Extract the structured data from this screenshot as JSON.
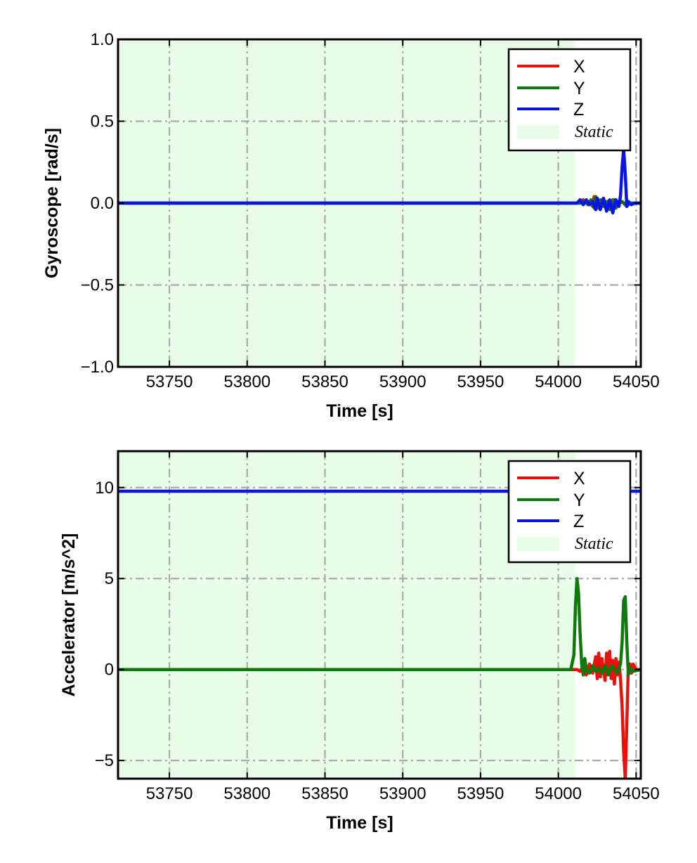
{
  "colors": {
    "x": "#e8120c",
    "y": "#0e7a0e",
    "z": "#0a14e6",
    "static_fill": "#e8fce8",
    "grid": "#aaaaaa"
  },
  "chart_data": [
    {
      "type": "line",
      "xlabel": "Time [s]",
      "ylabel": "Gyroscope [rad/s]",
      "xlim": [
        53717,
        54053
      ],
      "ylim": [
        -1.0,
        1.0
      ],
      "xticks": [
        53750,
        53800,
        53850,
        53900,
        53950,
        54000,
        54050
      ],
      "yticks": [
        -1.0,
        -0.5,
        0.0,
        0.5,
        1.0
      ],
      "ytick_labels": [
        "−1.0",
        "−0.5",
        "0.0",
        "0.5",
        "1.0"
      ],
      "grid": true,
      "static_region": [
        53717,
        54011
      ],
      "legend": {
        "position": "top-right",
        "entries": [
          "X",
          "Y",
          "Z",
          "Static"
        ]
      },
      "series": [
        {
          "name": "X",
          "color": "#e8120c",
          "points": [
            [
              53717,
              0
            ],
            [
              54014,
              0
            ],
            [
              54016,
              0.02
            ],
            [
              54018,
              0
            ],
            [
              54020,
              0.01
            ],
            [
              54022,
              -0.02
            ],
            [
              54023,
              0.04
            ],
            [
              54024,
              -0.04
            ],
            [
              54025,
              0.03
            ],
            [
              54026,
              -0.03
            ],
            [
              54028,
              0.02
            ],
            [
              54030,
              -0.02
            ],
            [
              54032,
              0.01
            ],
            [
              54034,
              -0.03
            ],
            [
              54036,
              0.02
            ],
            [
              54038,
              -0.02
            ],
            [
              54040,
              0.01
            ],
            [
              54042,
              0
            ],
            [
              54046,
              0
            ],
            [
              54053,
              0
            ]
          ]
        },
        {
          "name": "Y",
          "color": "#0e7a0e",
          "points": [
            [
              53717,
              0
            ],
            [
              54015,
              0
            ],
            [
              54017,
              0.01
            ],
            [
              54019,
              -0.01
            ],
            [
              54021,
              0.02
            ],
            [
              54023,
              -0.03
            ],
            [
              54024,
              0.04
            ],
            [
              54025,
              -0.03
            ],
            [
              54027,
              0.02
            ],
            [
              54029,
              -0.02
            ],
            [
              54031,
              0.01
            ],
            [
              54033,
              -0.04
            ],
            [
              54035,
              0.02
            ],
            [
              54037,
              -0.03
            ],
            [
              54039,
              0.01
            ],
            [
              54041,
              0.01
            ],
            [
              54044,
              -0.02
            ],
            [
              54046,
              0
            ],
            [
              54053,
              0
            ]
          ]
        },
        {
          "name": "Z",
          "color": "#0a14e6",
          "points": [
            [
              53717,
              0
            ],
            [
              54012,
              0
            ],
            [
              54014,
              0.02
            ],
            [
              54016,
              -0.01
            ],
            [
              54018,
              0.02
            ],
            [
              54020,
              -0.01
            ],
            [
              54022,
              0.01
            ],
            [
              54024,
              -0.04
            ],
            [
              54025,
              0.03
            ],
            [
              54027,
              -0.04
            ],
            [
              54029,
              0.03
            ],
            [
              54031,
              -0.05
            ],
            [
              54033,
              0.02
            ],
            [
              54035,
              -0.06
            ],
            [
              54037,
              0.02
            ],
            [
              54039,
              -0.02
            ],
            [
              54040,
              0.05
            ],
            [
              54041,
              0.22
            ],
            [
              54042,
              0.33
            ],
            [
              54043,
              0.18
            ],
            [
              54044,
              -0.02
            ],
            [
              54045,
              0.01
            ],
            [
              54047,
              -0.01
            ],
            [
              54049,
              0
            ],
            [
              54053,
              0
            ]
          ]
        }
      ]
    },
    {
      "type": "line",
      "xlabel": "Time [s]",
      "ylabel": "Accelerator [m/s^2]",
      "xlim": [
        53717,
        54053
      ],
      "ylim": [
        -6.0,
        12.0
      ],
      "xticks": [
        53750,
        53800,
        53850,
        53900,
        53950,
        54000,
        54050
      ],
      "yticks": [
        -5,
        0,
        5,
        10
      ],
      "ytick_labels": [
        "−5",
        "0",
        "5",
        "10"
      ],
      "grid": true,
      "static_region": [
        53717,
        54011
      ],
      "legend": {
        "position": "top-right",
        "entries": [
          "X",
          "Y",
          "Z",
          "Static"
        ]
      },
      "series": [
        {
          "name": "X",
          "color": "#e8120c",
          "points": [
            [
              53717,
              0
            ],
            [
              54012,
              0
            ],
            [
              54014,
              -0.1
            ],
            [
              54016,
              0.2
            ],
            [
              54018,
              -0.3
            ],
            [
              54020,
              0.3
            ],
            [
              54022,
              -0.2
            ],
            [
              54024,
              0.7
            ],
            [
              54025,
              -0.5
            ],
            [
              54026,
              0.9
            ],
            [
              54027,
              -0.4
            ],
            [
              54028,
              0.6
            ],
            [
              54030,
              -0.6
            ],
            [
              54031,
              0.9
            ],
            [
              54032,
              -0.3
            ],
            [
              54033,
              1.0
            ],
            [
              54034,
              -0.5
            ],
            [
              54035,
              0.5
            ],
            [
              54036,
              -0.8
            ],
            [
              54037,
              0.6
            ],
            [
              54038,
              -0.3
            ],
            [
              54039,
              0.4
            ],
            [
              54040,
              -0.6
            ],
            [
              54041,
              -2.0
            ],
            [
              54042,
              -4.5
            ],
            [
              54043,
              -6.0
            ],
            [
              54044,
              -3.0
            ],
            [
              54045,
              0.3
            ],
            [
              54046,
              0.3
            ],
            [
              54047,
              -0.2
            ],
            [
              54048,
              0.3
            ],
            [
              54050,
              0
            ],
            [
              54053,
              0
            ]
          ]
        },
        {
          "name": "Y",
          "color": "#0e7a0e",
          "points": [
            [
              53717,
              0
            ],
            [
              54008,
              0
            ],
            [
              54010,
              0.8
            ],
            [
              54011,
              3.5
            ],
            [
              54012,
              5.0
            ],
            [
              54013,
              4.2
            ],
            [
              54014,
              2.0
            ],
            [
              54015,
              0.3
            ],
            [
              54016,
              -0.3
            ],
            [
              54017,
              0.6
            ],
            [
              54018,
              0
            ],
            [
              54020,
              -0.2
            ],
            [
              54022,
              0.2
            ],
            [
              54024,
              -0.1
            ],
            [
              54026,
              0.1
            ],
            [
              54028,
              -0.2
            ],
            [
              54030,
              0.2
            ],
            [
              54032,
              -0.3
            ],
            [
              54034,
              0.2
            ],
            [
              54036,
              0
            ],
            [
              54038,
              -0.2
            ],
            [
              54040,
              0.3
            ],
            [
              54041,
              1.5
            ],
            [
              54042,
              3.8
            ],
            [
              54043,
              4.0
            ],
            [
              54044,
              1.5
            ],
            [
              54045,
              -0.3
            ],
            [
              54046,
              0.1
            ],
            [
              54048,
              -0.1
            ],
            [
              54053,
              0
            ]
          ]
        },
        {
          "name": "Z",
          "color": "#0a14e6",
          "points": [
            [
              53717,
              9.8
            ],
            [
              54053,
              9.8
            ]
          ]
        }
      ]
    }
  ]
}
